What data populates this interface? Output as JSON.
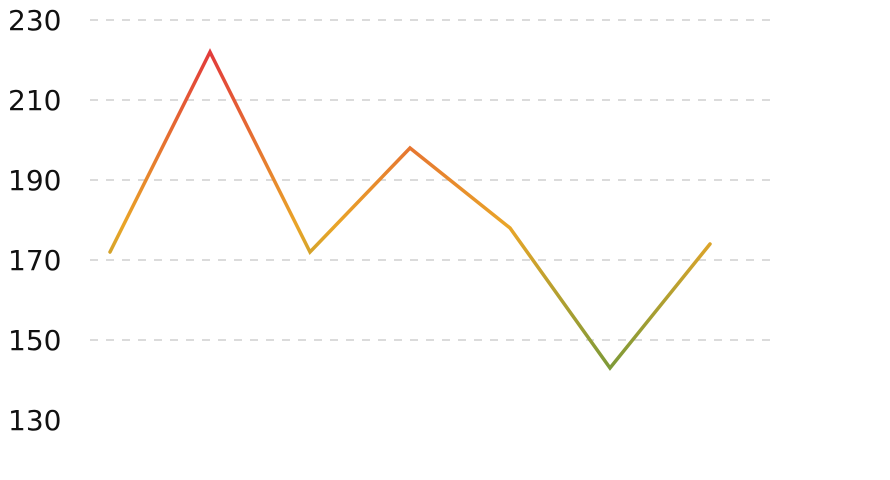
{
  "chart_data": {
    "type": "line",
    "title": "",
    "xlabel": "",
    "ylabel": "",
    "x": [
      1,
      2,
      3,
      4,
      5,
      6,
      7
    ],
    "series": [
      {
        "values": [
          172,
          222,
          172,
          198,
          178,
          143,
          174
        ]
      }
    ],
    "ylim": [
      130,
      230
    ],
    "yticks": [
      230,
      210,
      190,
      170,
      150,
      130
    ],
    "grid": true,
    "grid_style": "dashed",
    "line_color_gradient": {
      "high": "#e23b3b",
      "mid": "#e9a528",
      "low": "#7d9a38"
    }
  }
}
